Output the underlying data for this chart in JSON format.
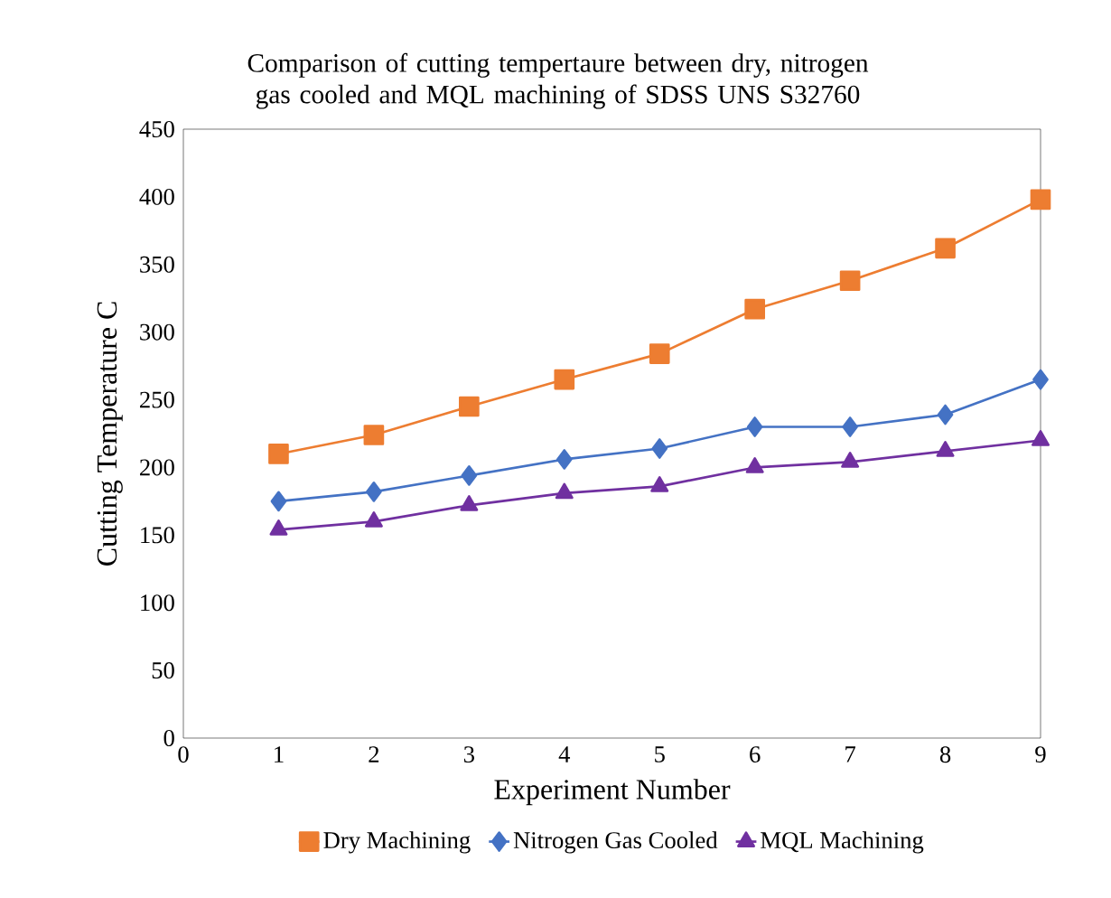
{
  "chart_data": {
    "type": "line",
    "title": "Comparison of cutting tempertaure between dry, nitrogen gas cooled and MQL machining of SDSS UNS S32760",
    "xlabel": "Experiment Number",
    "ylabel": "Cutting Temperature C",
    "x": [
      1,
      2,
      3,
      4,
      5,
      6,
      7,
      8,
      9
    ],
    "series": [
      {
        "name": "Dry Machining",
        "color": "#ed7d31",
        "marker": "square",
        "values": [
          210,
          224,
          245,
          265,
          284,
          317,
          338,
          362,
          398
        ]
      },
      {
        "name": "Nitrogen Gas Cooled",
        "color": "#4472c4",
        "marker": "diamond",
        "values": [
          175,
          182,
          194,
          206,
          214,
          230,
          230,
          239,
          265
        ]
      },
      {
        "name": "MQL Machining",
        "color": "#7030a0",
        "marker": "triangle",
        "values": [
          154,
          160,
          172,
          181,
          186,
          200,
          204,
          212,
          220
        ]
      }
    ],
    "xlim": [
      0,
      9
    ],
    "xticks": [
      0,
      1,
      2,
      3,
      4,
      5,
      6,
      7,
      8,
      9
    ],
    "ylim": [
      0,
      450
    ],
    "yticks": [
      0,
      50,
      100,
      150,
      200,
      250,
      300,
      350,
      400,
      450
    ],
    "grid": false,
    "legend": "bottom",
    "line_style": "solid"
  }
}
